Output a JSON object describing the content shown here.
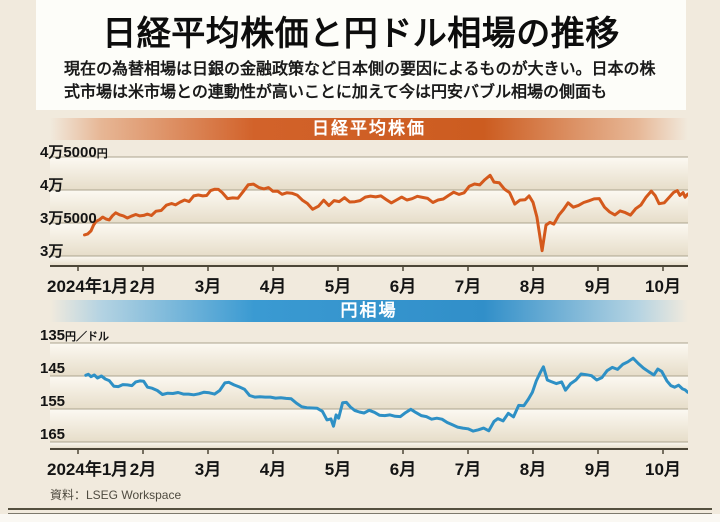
{
  "page": {
    "title": "日経平均株価と円ドル相場の推移",
    "subtitle_line1": "現在の為替相場は日銀の金融政策など日本側の要因によるものが大きい。日本の株",
    "subtitle_line2": "式市場は米市場との連動性が高いことに加えて今は円安バブル相場の側面も",
    "source": "資料：LSEG Workspace"
  },
  "x_axis": {
    "months": [
      "2024年1月",
      "2月",
      "3月",
      "4月",
      "5月",
      "6月",
      "7月",
      "8月",
      "9月",
      "10月"
    ]
  },
  "chart_data": [
    {
      "type": "line",
      "title": "日経平均株価",
      "line_color": "#d4591c",
      "band_color": "#d2622a",
      "x_unit": "months_since_2024-01-01",
      "ylabel": "円",
      "ylim": [
        28200,
        46800
      ],
      "grid": "horizontal",
      "legend_position": "none",
      "y_axis": {
        "values": [
          45000,
          40000,
          35000,
          30000
        ],
        "ticks": [
          {
            "text": "4万5000",
            "unit": "円"
          },
          {
            "text": "4万",
            "unit": ""
          },
          {
            "text": "3万5000",
            "unit": ""
          },
          {
            "text": "3万",
            "unit": ""
          }
        ]
      },
      "points": [
        [
          0.1,
          33200
        ],
        [
          0.15,
          33350
        ],
        [
          0.2,
          33800
        ],
        [
          0.24,
          34700
        ],
        [
          0.28,
          35250
        ],
        [
          0.33,
          35500
        ],
        [
          0.38,
          35900
        ],
        [
          0.43,
          35600
        ],
        [
          0.48,
          35470
        ],
        [
          0.53,
          36100
        ],
        [
          0.58,
          36550
        ],
        [
          0.64,
          36240
        ],
        [
          0.7,
          36080
        ],
        [
          0.76,
          35750
        ],
        [
          0.82,
          36030
        ],
        [
          0.89,
          36290
        ],
        [
          0.95,
          36070
        ],
        [
          1.01,
          36150
        ],
        [
          1.07,
          36350
        ],
        [
          1.13,
          36140
        ],
        [
          1.2,
          36790
        ],
        [
          1.28,
          36900
        ],
        [
          1.36,
          37700
        ],
        [
          1.44,
          37960
        ],
        [
          1.5,
          37750
        ],
        [
          1.57,
          38160
        ],
        [
          1.64,
          38490
        ],
        [
          1.71,
          38240
        ],
        [
          1.78,
          39100
        ],
        [
          1.85,
          39240
        ],
        [
          1.92,
          39100
        ],
        [
          1.98,
          39170
        ],
        [
          2.04,
          39910
        ],
        [
          2.1,
          40110
        ],
        [
          2.16,
          40090
        ],
        [
          2.22,
          39600
        ],
        [
          2.3,
          38700
        ],
        [
          2.38,
          38810
        ],
        [
          2.46,
          38750
        ],
        [
          2.54,
          39740
        ],
        [
          2.62,
          40810
        ],
        [
          2.7,
          40890
        ],
        [
          2.78,
          40400
        ],
        [
          2.86,
          40170
        ],
        [
          2.93,
          40370
        ],
        [
          3.0,
          39800
        ],
        [
          3.07,
          39840
        ],
        [
          3.14,
          39350
        ],
        [
          3.21,
          39580
        ],
        [
          3.29,
          39520
        ],
        [
          3.37,
          39230
        ],
        [
          3.45,
          38470
        ],
        [
          3.53,
          37960
        ],
        [
          3.61,
          37070
        ],
        [
          3.7,
          37550
        ],
        [
          3.78,
          38460
        ],
        [
          3.86,
          37630
        ],
        [
          3.94,
          38400
        ],
        [
          4.02,
          38240
        ],
        [
          4.1,
          38840
        ],
        [
          4.18,
          38180
        ],
        [
          4.26,
          38230
        ],
        [
          4.34,
          38390
        ],
        [
          4.42,
          38920
        ],
        [
          4.5,
          39070
        ],
        [
          4.58,
          38950
        ],
        [
          4.66,
          39100
        ],
        [
          4.74,
          38560
        ],
        [
          4.82,
          38050
        ],
        [
          4.9,
          38490
        ],
        [
          4.98,
          38920
        ],
        [
          5.06,
          38490
        ],
        [
          5.14,
          38680
        ],
        [
          5.22,
          39040
        ],
        [
          5.3,
          38880
        ],
        [
          5.38,
          38720
        ],
        [
          5.46,
          38100
        ],
        [
          5.54,
          38480
        ],
        [
          5.62,
          38630
        ],
        [
          5.7,
          39170
        ],
        [
          5.78,
          39670
        ],
        [
          5.86,
          39340
        ],
        [
          5.94,
          39580
        ],
        [
          6.02,
          40580
        ],
        [
          6.1,
          40910
        ],
        [
          6.18,
          40780
        ],
        [
          6.26,
          41580
        ],
        [
          6.34,
          42220
        ],
        [
          6.4,
          41190
        ],
        [
          6.48,
          41100
        ],
        [
          6.56,
          40130
        ],
        [
          6.64,
          39600
        ],
        [
          6.72,
          37870
        ],
        [
          6.8,
          38470
        ],
        [
          6.88,
          38530
        ],
        [
          6.94,
          39100
        ],
        [
          7.0,
          38130
        ],
        [
          7.06,
          35910
        ],
        [
          7.14,
          30800
        ],
        [
          7.2,
          34680
        ],
        [
          7.26,
          35090
        ],
        [
          7.32,
          34830
        ],
        [
          7.4,
          36230
        ],
        [
          7.47,
          37050
        ],
        [
          7.54,
          38060
        ],
        [
          7.62,
          37390
        ],
        [
          7.7,
          37670
        ],
        [
          7.78,
          38110
        ],
        [
          7.86,
          38370
        ],
        [
          7.94,
          38650
        ],
        [
          8.02,
          38700
        ],
        [
          8.1,
          37400
        ],
        [
          8.18,
          36660
        ],
        [
          8.26,
          36220
        ],
        [
          8.34,
          36830
        ],
        [
          8.42,
          36580
        ],
        [
          8.5,
          36200
        ],
        [
          8.58,
          37160
        ],
        [
          8.66,
          37720
        ],
        [
          8.74,
          38930
        ],
        [
          8.82,
          39830
        ],
        [
          8.88,
          39150
        ],
        [
          8.94,
          37920
        ],
        [
          9.02,
          38060
        ],
        [
          9.1,
          38940
        ],
        [
          9.16,
          39610
        ],
        [
          9.22,
          39910
        ],
        [
          9.26,
          39180
        ],
        [
          9.31,
          39600
        ],
        [
          9.34,
          38910
        ],
        [
          9.38,
          39380
        ]
      ]
    },
    {
      "type": "line",
      "title": "円相場",
      "line_color": "#2e90c5",
      "band_color": "#3a9ad2",
      "x_unit": "months_since_2024-01-01",
      "ylabel": "円／ドル",
      "ylim": [
        132.5,
        166.5
      ],
      "y_inverted": true,
      "grid": "horizontal",
      "legend_position": "none",
      "y_axis": {
        "values": [
          135,
          145,
          155,
          165
        ],
        "ticks": [
          {
            "text": "135",
            "unit": "円／ドル"
          },
          {
            "text": "145",
            "unit": ""
          },
          {
            "text": "155",
            "unit": ""
          },
          {
            "text": "165",
            "unit": ""
          }
        ]
      },
      "points": [
        [
          0.12,
          144.8
        ],
        [
          0.16,
          144.5
        ],
        [
          0.2,
          145.2
        ],
        [
          0.25,
          144.7
        ],
        [
          0.3,
          145.6
        ],
        [
          0.36,
          145.0
        ],
        [
          0.42,
          145.9
        ],
        [
          0.48,
          146.4
        ],
        [
          0.55,
          148.1
        ],
        [
          0.62,
          148.2
        ],
        [
          0.69,
          147.6
        ],
        [
          0.76,
          147.7
        ],
        [
          0.83,
          147.9
        ],
        [
          0.89,
          146.8
        ],
        [
          0.95,
          146.5
        ],
        [
          1.01,
          146.6
        ],
        [
          1.07,
          148.4
        ],
        [
          1.14,
          148.7
        ],
        [
          1.22,
          149.4
        ],
        [
          1.3,
          150.6
        ],
        [
          1.38,
          150.2
        ],
        [
          1.46,
          150.3
        ],
        [
          1.54,
          150.0
        ],
        [
          1.62,
          150.5
        ],
        [
          1.7,
          150.5
        ],
        [
          1.78,
          150.7
        ],
        [
          1.86,
          150.4
        ],
        [
          1.94,
          149.9
        ],
        [
          2.02,
          150.1
        ],
        [
          2.1,
          150.5
        ],
        [
          2.18,
          149.4
        ],
        [
          2.26,
          147.1
        ],
        [
          2.32,
          146.9
        ],
        [
          2.4,
          147.7
        ],
        [
          2.48,
          148.3
        ],
        [
          2.56,
          149.0
        ],
        [
          2.64,
          150.9
        ],
        [
          2.72,
          151.4
        ],
        [
          2.8,
          151.3
        ],
        [
          2.88,
          151.4
        ],
        [
          2.96,
          151.4
        ],
        [
          3.04,
          151.7
        ],
        [
          3.12,
          151.6
        ],
        [
          3.2,
          151.8
        ],
        [
          3.28,
          151.9
        ],
        [
          3.36,
          153.2
        ],
        [
          3.44,
          154.3
        ],
        [
          3.52,
          154.6
        ],
        [
          3.6,
          154.7
        ],
        [
          3.68,
          154.8
        ],
        [
          3.76,
          155.7
        ],
        [
          3.83,
          158.3
        ],
        [
          3.89,
          158.0
        ],
        [
          3.93,
          160.2
        ],
        [
          3.97,
          156.8
        ],
        [
          4.01,
          157.8
        ],
        [
          4.07,
          153.1
        ],
        [
          4.13,
          153.0
        ],
        [
          4.19,
          154.4
        ],
        [
          4.26,
          155.5
        ],
        [
          4.33,
          155.9
        ],
        [
          4.4,
          156.2
        ],
        [
          4.48,
          155.4
        ],
        [
          4.56,
          156.0
        ],
        [
          4.64,
          156.9
        ],
        [
          4.72,
          157.0
        ],
        [
          4.8,
          156.8
        ],
        [
          4.88,
          157.2
        ],
        [
          4.96,
          157.3
        ],
        [
          5.04,
          156.1
        ],
        [
          5.12,
          155.1
        ],
        [
          5.2,
          156.1
        ],
        [
          5.28,
          157.0
        ],
        [
          5.36,
          157.3
        ],
        [
          5.44,
          158.1
        ],
        [
          5.52,
          157.8
        ],
        [
          5.6,
          158.1
        ],
        [
          5.68,
          159.1
        ],
        [
          5.76,
          159.8
        ],
        [
          5.84,
          160.5
        ],
        [
          5.92,
          160.8
        ],
        [
          6.0,
          161.0
        ],
        [
          6.08,
          161.7
        ],
        [
          6.16,
          161.3
        ],
        [
          6.24,
          160.8
        ],
        [
          6.32,
          161.6
        ],
        [
          6.4,
          158.8
        ],
        [
          6.46,
          157.9
        ],
        [
          6.54,
          158.6
        ],
        [
          6.62,
          156.3
        ],
        [
          6.7,
          157.4
        ],
        [
          6.78,
          153.9
        ],
        [
          6.86,
          154.0
        ],
        [
          6.93,
          152.0
        ],
        [
          6.99,
          149.9
        ],
        [
          7.05,
          146.5
        ],
        [
          7.11,
          144.0
        ],
        [
          7.16,
          142.2
        ],
        [
          7.22,
          146.2
        ],
        [
          7.28,
          146.7
        ],
        [
          7.36,
          147.3
        ],
        [
          7.44,
          146.8
        ],
        [
          7.5,
          149.3
        ],
        [
          7.58,
          147.3
        ],
        [
          7.66,
          146.2
        ],
        [
          7.74,
          144.4
        ],
        [
          7.82,
          144.6
        ],
        [
          7.9,
          144.9
        ],
        [
          7.98,
          146.2
        ],
        [
          8.06,
          145.5
        ],
        [
          8.14,
          143.4
        ],
        [
          8.22,
          142.4
        ],
        [
          8.3,
          143.0
        ],
        [
          8.38,
          141.5
        ],
        [
          8.46,
          140.7
        ],
        [
          8.54,
          139.6
        ],
        [
          8.62,
          141.2
        ],
        [
          8.7,
          142.6
        ],
        [
          8.78,
          143.7
        ],
        [
          8.86,
          144.7
        ],
        [
          8.92,
          142.9
        ],
        [
          8.98,
          143.6
        ],
        [
          9.06,
          146.5
        ],
        [
          9.12,
          147.9
        ],
        [
          9.18,
          148.4
        ],
        [
          9.24,
          147.8
        ],
        [
          9.3,
          148.9
        ],
        [
          9.34,
          149.2
        ],
        [
          9.38,
          149.9
        ]
      ]
    }
  ]
}
